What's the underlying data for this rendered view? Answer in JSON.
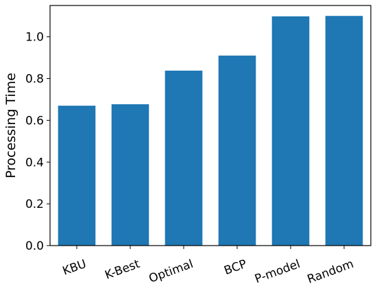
{
  "chart_data": {
    "type": "bar",
    "title": "",
    "xlabel": "",
    "ylabel": "Processing Time",
    "categories": [
      "KBU",
      "K-Best",
      "Optimal",
      "BCP",
      "P-model",
      "Random"
    ],
    "values": [
      0.67,
      0.677,
      0.838,
      0.91,
      1.098,
      1.1
    ],
    "ylim": [
      0,
      1.15
    ],
    "yticks": [
      0.0,
      0.2,
      0.4,
      0.6,
      0.8,
      1.0
    ],
    "ytick_labels": [
      "0.0",
      "0.2",
      "0.4",
      "0.6",
      "0.8",
      "1.0"
    ],
    "xtick_rotation": "rotated ~20°",
    "grid": false,
    "legend": "none",
    "bar_color": "#1f77b4"
  }
}
